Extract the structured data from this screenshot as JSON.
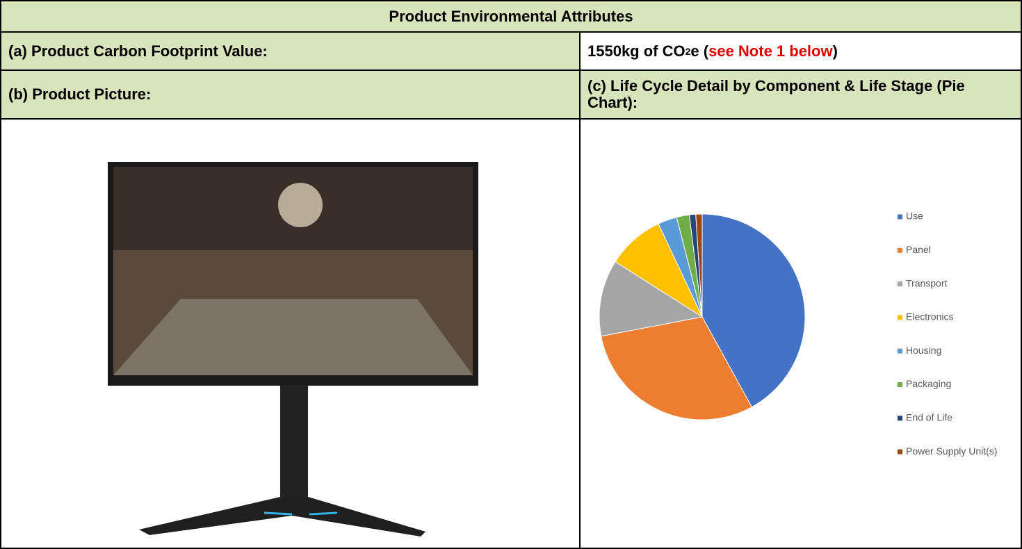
{
  "title": "Product Environmental Attributes",
  "carbon_footprint": {
    "label": "(a) Product Carbon Footprint Value:",
    "value_text": "1550kg of CO",
    "subscript": "2",
    "value_suffix": "e (",
    "note": "see Note 1 below",
    "close": ")"
  },
  "product_picture": {
    "label": "(b) Product Picture:"
  },
  "life_cycle": {
    "label": "(c) Life Cycle Detail by Component & Life Stage (Pie Chart):"
  },
  "chart_data": {
    "type": "pie",
    "categories": [
      "Use",
      "Panel",
      "Transport",
      "Electronics",
      "Housing",
      "Packaging",
      "End of Life",
      "Power Supply Unit(s)"
    ],
    "values": [
      42,
      30,
      12,
      9,
      3,
      2,
      1,
      1
    ],
    "colors": [
      "#4472c4",
      "#ed7d31",
      "#a5a5a5",
      "#ffc000",
      "#5b9bd5",
      "#70ad47",
      "#264478",
      "#9e480e"
    ],
    "legend": "right"
  }
}
